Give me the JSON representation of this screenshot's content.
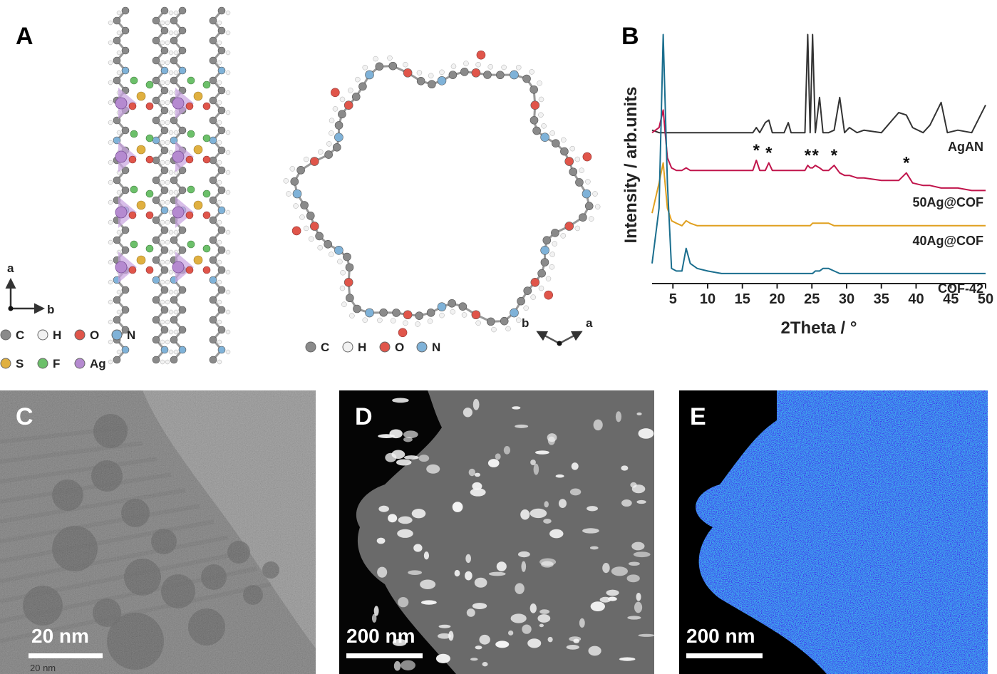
{
  "panels": {
    "A": {
      "label": "A",
      "axes": [
        "a",
        "b"
      ],
      "legend": [
        {
          "name": "C",
          "color": "#8a8a8a"
        },
        {
          "name": "H",
          "color": "#f2f2f2"
        },
        {
          "name": "O",
          "color": "#e0554a"
        },
        {
          "name": "N",
          "color": "#7fb2d8"
        },
        {
          "name": "S",
          "color": "#e0b040"
        },
        {
          "name": "F",
          "color": "#6cc06a"
        },
        {
          "name": "Ag",
          "color": "#b58ad0"
        }
      ]
    },
    "ring": {
      "axes": [
        "b",
        "a"
      ],
      "legend": [
        {
          "name": "C",
          "color": "#8a8a8a"
        },
        {
          "name": "H",
          "color": "#f2f2f2"
        },
        {
          "name": "O",
          "color": "#e0554a"
        },
        {
          "name": "N",
          "color": "#7fb2d8"
        }
      ]
    },
    "B": {
      "label": "B"
    },
    "C": {
      "label": "C",
      "scale_bar": "20 nm",
      "caption": "20 nm"
    },
    "D": {
      "label": "D",
      "scale_bar": "200 nm"
    },
    "E": {
      "label": "E",
      "scale_bar": "200 nm"
    }
  },
  "chart_data": {
    "type": "line",
    "x_label": "2Theta / °",
    "y_label": "Intensity / arb.units",
    "x": [
      2,
      3,
      3.6,
      4.2,
      4.8,
      5.5,
      6.3,
      6.9,
      7.5,
      8.5,
      10,
      12,
      14,
      16.5,
      17.0,
      17.5,
      18.3,
      18.8,
      19.3,
      21,
      21.6,
      22,
      24,
      24.4,
      24.75,
      25.1,
      25.5,
      26.1,
      26.6,
      27.4,
      28.2,
      29.0,
      29.7,
      30.4,
      31.5,
      32.5,
      35,
      37.5,
      38.6,
      39.5,
      41,
      42,
      43.6,
      44.5,
      46,
      48,
      50
    ],
    "series": [
      {
        "name": "AgAN",
        "color": "#333333",
        "values": [
          61,
          60,
          60,
          60,
          60,
          60,
          60,
          60,
          60,
          60,
          60,
          60,
          60,
          60,
          62,
          60,
          64,
          65,
          60,
          60,
          64,
          60,
          60,
          99,
          60,
          99,
          60,
          74,
          60,
          60,
          61,
          74,
          60,
          62,
          60,
          61,
          60,
          68,
          67,
          62,
          60,
          63,
          72,
          60,
          61,
          60,
          71
        ]
      },
      {
        "name": "50Ag@COF",
        "color": "#c0144b",
        "values": [
          60,
          62,
          69,
          50,
          46,
          45,
          45,
          46,
          45,
          45,
          45,
          45,
          45,
          45,
          49,
          45,
          45,
          48,
          45,
          45,
          45,
          45,
          45,
          47,
          46,
          46,
          47,
          46,
          45,
          45,
          47,
          44,
          43,
          43,
          42,
          42,
          41,
          41,
          44,
          40,
          39,
          39,
          38,
          38,
          38,
          37,
          37
        ]
      },
      {
        "name": "40Ag@COF",
        "color": "#e0a020",
        "values": [
          28,
          40,
          48,
          30,
          25,
          24,
          23,
          25,
          24,
          23,
          23,
          23,
          23,
          23,
          23,
          23,
          23,
          23,
          23,
          23,
          23,
          23,
          23,
          23,
          23,
          24,
          24,
          24,
          24,
          24,
          23,
          23,
          23,
          23,
          23,
          23,
          23,
          23,
          23,
          23,
          23,
          23,
          23,
          23,
          23,
          23,
          23
        ]
      },
      {
        "name": "COF-42",
        "color": "#1a6e8e",
        "values": [
          8,
          30,
          99,
          40,
          6,
          5,
          5,
          14,
          8,
          6,
          5,
          4,
          4,
          4,
          4,
          4,
          4,
          4,
          4,
          4,
          4,
          4,
          4,
          4,
          4,
          4,
          5,
          5,
          6,
          6,
          5,
          4,
          4,
          4,
          4,
          4,
          4,
          4,
          4,
          4,
          4,
          4,
          4,
          4,
          4,
          4,
          4
        ]
      }
    ],
    "annotations": [
      {
        "text": "*",
        "x": 17.0
      },
      {
        "text": "*",
        "x": 18.8
      },
      {
        "text": "*",
        "x": 24.4
      },
      {
        "text": "*",
        "x": 25.5
      },
      {
        "text": "*",
        "x": 28.2
      },
      {
        "text": "*",
        "x": 38.6
      }
    ],
    "xlim": [
      2,
      50
    ],
    "ylim": [
      0,
      100
    ],
    "xticks": [
      5,
      10,
      15,
      20,
      25,
      30,
      35,
      40,
      45,
      50
    ]
  }
}
